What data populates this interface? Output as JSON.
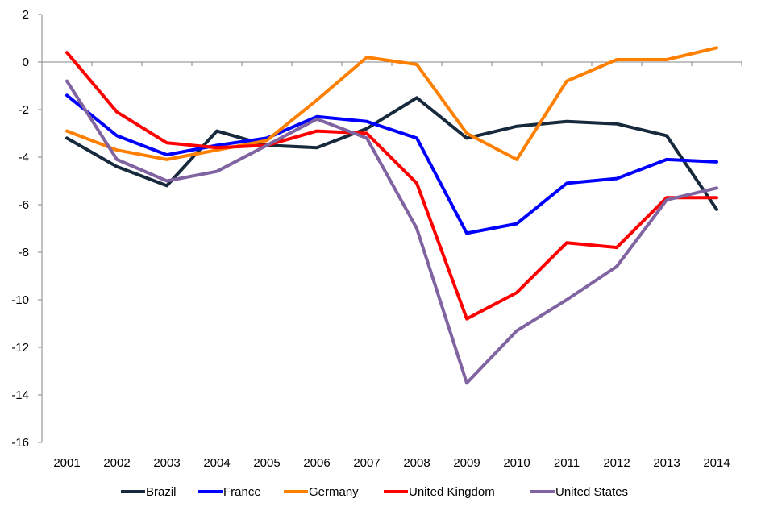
{
  "chart_data": {
    "type": "line",
    "title": "",
    "xlabel": "",
    "ylabel": "",
    "ylim": [
      -16,
      2
    ],
    "yticks": [
      2,
      0,
      -2,
      -4,
      -6,
      -8,
      -10,
      -12,
      -14,
      -16
    ],
    "ytick_labels": [
      "2",
      "0",
      "-2",
      "-4",
      "-6",
      "-8",
      "-10",
      "-12",
      "-14",
      "-16"
    ],
    "categories": [
      "2001",
      "2002",
      "2003",
      "2004",
      "2005",
      "2006",
      "2007",
      "2008",
      "2009",
      "2010",
      "2011",
      "2012",
      "2013",
      "2014"
    ],
    "grid": false,
    "legend_position": "bottom",
    "series": [
      {
        "name": "Brazil",
        "color": "#17293d",
        "values": [
          -3.2,
          -4.4,
          -5.2,
          -2.9,
          -3.5,
          -3.6,
          -2.8,
          -1.5,
          -3.2,
          -2.7,
          -2.5,
          -2.6,
          -3.1,
          -6.2
        ]
      },
      {
        "name": "France",
        "color": "#0000ff",
        "values": [
          -1.4,
          -3.1,
          -3.9,
          -3.5,
          -3.2,
          -2.3,
          -2.5,
          -3.2,
          -7.2,
          -6.8,
          -5.1,
          -4.9,
          -4.1,
          -4.2
        ]
      },
      {
        "name": "Germany",
        "color": "#ff7f00",
        "values": [
          -2.9,
          -3.7,
          -4.1,
          -3.7,
          -3.3,
          -1.6,
          0.2,
          -0.1,
          -3.0,
          -4.1,
          -0.8,
          0.1,
          0.1,
          0.6
        ]
      },
      {
        "name": "United Kingdom",
        "color": "#ff0000",
        "values": [
          0.4,
          -2.1,
          -3.4,
          -3.6,
          -3.5,
          -2.9,
          -3.0,
          -5.1,
          -10.8,
          -9.7,
          -7.6,
          -7.8,
          -5.7,
          -5.7
        ]
      },
      {
        "name": "United States",
        "color": "#8064a2",
        "values": [
          -0.8,
          -4.1,
          -5.0,
          -4.6,
          -3.5,
          -2.4,
          -3.2,
          -7.0,
          -13.5,
          -11.3,
          -10.0,
          -8.6,
          -5.8,
          -5.3
        ]
      }
    ]
  }
}
